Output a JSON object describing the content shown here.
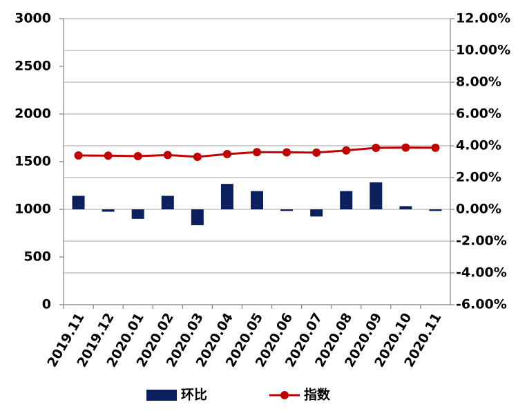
{
  "chart_data": {
    "type": "combo",
    "categories": [
      "2019.11",
      "2019.12",
      "2020.01",
      "2020.02",
      "2020.03",
      "2020.04",
      "2020.05",
      "2020.06",
      "2020.07",
      "2020.08",
      "2020.09",
      "2020.10",
      "2020.11"
    ],
    "series": [
      {
        "name": "环比",
        "type": "bar",
        "axis": "y2",
        "color": "#0b1f5e",
        "values": [
          0.85,
          -0.15,
          -0.6,
          0.85,
          -1.0,
          1.6,
          1.15,
          -0.1,
          -0.45,
          1.15,
          1.7,
          0.2,
          -0.1
        ]
      },
      {
        "name": "指数",
        "type": "line",
        "color": "#c00000",
        "values": [
          1565,
          1563,
          1558,
          1570,
          1551,
          1580,
          1600,
          1598,
          1595,
          1618,
          1645,
          1648,
          1646
        ]
      }
    ],
    "ylim": [
      0,
      3000
    ],
    "yticks": [
      0,
      500,
      1000,
      1500,
      2000,
      2500,
      3000
    ],
    "y2lim": [
      -6,
      12
    ],
    "y2ticks": [
      {
        "value": -6,
        "label": "-6.00%"
      },
      {
        "value": -4,
        "label": "-4.00%"
      },
      {
        "value": -2,
        "label": "-2.00%"
      },
      {
        "value": 0,
        "label": "0.00%"
      },
      {
        "value": 2,
        "label": "2.00%"
      },
      {
        "value": 4,
        "label": "4.00%"
      },
      {
        "value": 6,
        "label": "6.00%"
      },
      {
        "value": 8,
        "label": "8.00%"
      },
      {
        "value": 10,
        "label": "10.00%"
      },
      {
        "value": 12,
        "label": "12.00%"
      }
    ],
    "grid": true,
    "legend": "bottom"
  }
}
